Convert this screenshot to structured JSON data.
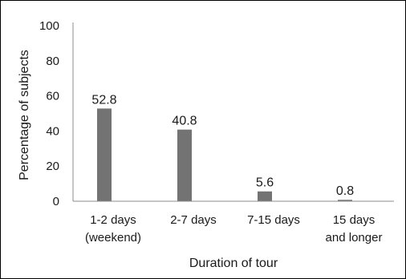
{
  "chart_data": {
    "type": "bar",
    "categories": [
      [
        "1-2 days",
        "(weekend)"
      ],
      [
        "2-7 days"
      ],
      [
        "7-15 days"
      ],
      [
        "15 days",
        "and longer"
      ]
    ],
    "series": [
      {
        "values": [
          52.8,
          40.8,
          5.6,
          0.8
        ],
        "color": "#737373"
      }
    ],
    "data_labels": [
      "52.8",
      "40.8",
      "5.6",
      "0.8"
    ],
    "xlabel": "Duration of tour",
    "ylabel": "Percentage of subjects",
    "ylim": [
      0,
      100
    ],
    "yticks": [
      0,
      20,
      40,
      60,
      80,
      100
    ],
    "grid": false,
    "legend": "none"
  }
}
